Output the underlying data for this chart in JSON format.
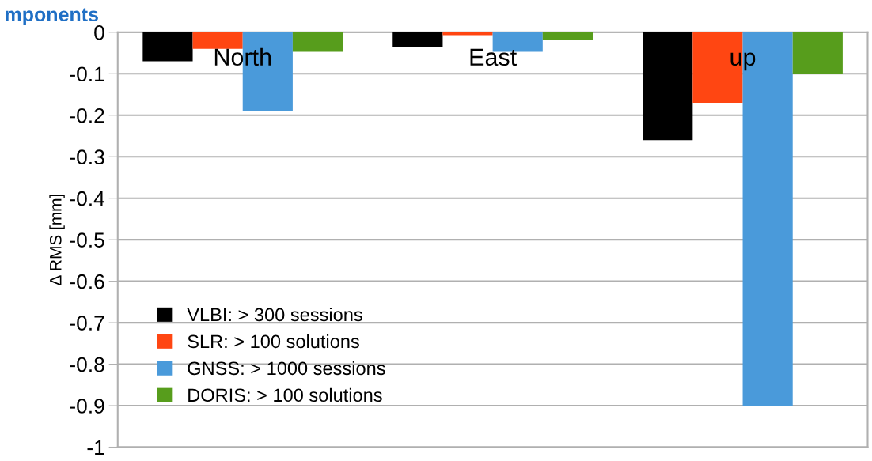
{
  "chart_data": {
    "type": "bar",
    "title": "mponents",
    "ylabel": "Δ RMS [mm]",
    "categories": [
      "North",
      "East",
      "up"
    ],
    "series": [
      {
        "name": "VLBI: > 300 sessions",
        "color": "#000000",
        "values": [
          -0.07,
          -0.035,
          -0.26
        ]
      },
      {
        "name": "SLR: > 100 solutions",
        "color": "#ff4612",
        "values": [
          -0.04,
          -0.007,
          -0.17
        ]
      },
      {
        "name": "GNSS: > 1000 sessions",
        "color": "#4a9ada",
        "values": [
          -0.19,
          -0.047,
          -0.9
        ]
      },
      {
        "name": "DORIS: > 100 solutions",
        "color": "#579d1c",
        "values": [
          -0.047,
          -0.018,
          -0.1
        ]
      }
    ],
    "ylim": [
      -1,
      0
    ],
    "yticks": [
      {
        "value": -1,
        "label": "-1"
      },
      {
        "value": -0.9,
        "label": "-0.9"
      },
      {
        "value": -0.8,
        "label": "-0.8"
      },
      {
        "value": -0.7,
        "label": "-0.7"
      },
      {
        "value": -0.6,
        "label": "-0.6"
      },
      {
        "value": -0.5,
        "label": "-0.5"
      },
      {
        "value": -0.4,
        "label": "-0.4"
      },
      {
        "value": -0.3,
        "label": "-0.3"
      },
      {
        "value": -0.2,
        "label": "-0.2"
      },
      {
        "value": -0.1,
        "label": "-0.1"
      },
      {
        "value": 0,
        "label": "0"
      }
    ],
    "grid": "y",
    "legend": "bottom left"
  }
}
